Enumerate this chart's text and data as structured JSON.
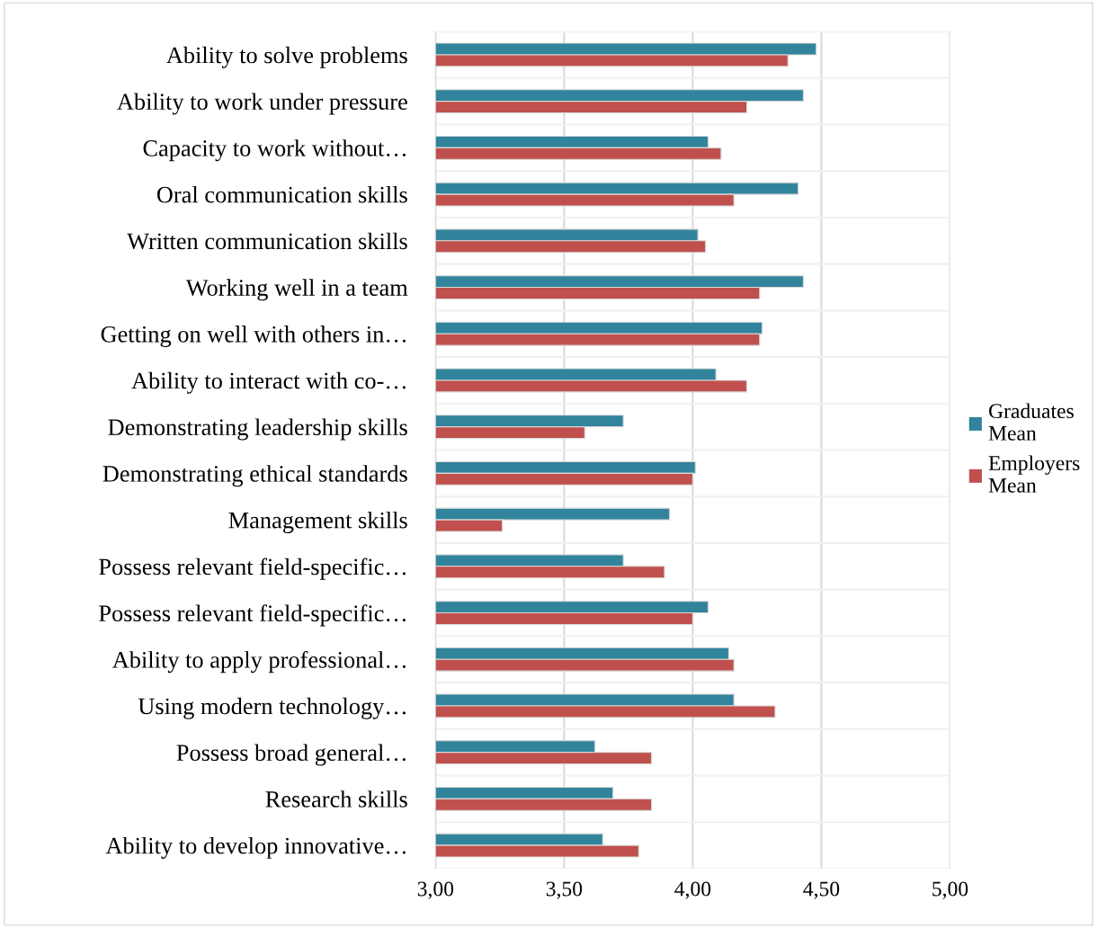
{
  "chart_data": {
    "type": "bar",
    "orientation": "horizontal",
    "categories": [
      "Ability to solve problems",
      "Ability to work under pressure",
      "Capacity to work without…",
      "Oral communication skills",
      "Written communication skills",
      "Working well in a team",
      "Getting on well with others in…",
      "Ability to interact with co-…",
      "Demonstrating leadership skills",
      "Demonstrating ethical standards",
      "Management skills",
      "Possess relevant field-specific…",
      "Possess relevant field-specific…",
      "Ability to apply professional…",
      "Using modern technology…",
      "Possess broad general…",
      "Research skills",
      "Ability to develop innovative…"
    ],
    "series": [
      {
        "name": "Graduates Mean",
        "color": "#31849b",
        "values": [
          4.48,
          4.43,
          4.06,
          4.41,
          4.02,
          4.43,
          4.27,
          4.09,
          3.73,
          4.01,
          3.91,
          3.73,
          4.06,
          4.14,
          4.16,
          3.62,
          3.69,
          3.65
        ]
      },
      {
        "name": "Employers Mean",
        "color": "#c0504d",
        "values": [
          4.37,
          4.21,
          4.11,
          4.16,
          4.05,
          4.26,
          4.26,
          4.21,
          3.58,
          4.0,
          3.26,
          3.89,
          4.0,
          4.16,
          4.32,
          3.84,
          3.84,
          3.79
        ]
      }
    ],
    "xlim": [
      3.0,
      5.0
    ],
    "xticks": [
      {
        "value": 3.0,
        "label": "3,00"
      },
      {
        "value": 3.5,
        "label": "3,50"
      },
      {
        "value": 4.0,
        "label": "4,00"
      },
      {
        "value": 4.5,
        "label": "4,50"
      },
      {
        "value": 5.0,
        "label": "5,00"
      }
    ],
    "grid": true,
    "legend": "right"
  }
}
